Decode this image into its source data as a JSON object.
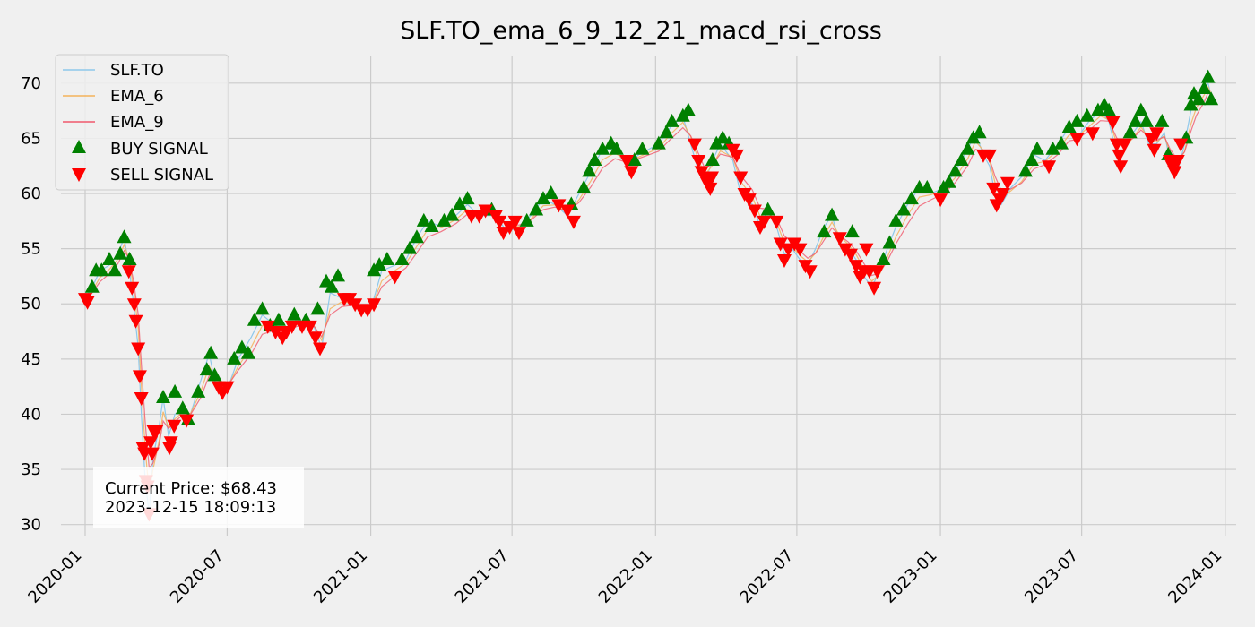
{
  "chart_data": {
    "type": "line",
    "title": "SLF.TO_ema_6_9_12_21_macd_rsi_cross",
    "xlabel": "",
    "ylabel": "",
    "x_range": [
      "2019-12-01",
      "2024-01-15"
    ],
    "ylim": [
      29,
      72.5
    ],
    "x_ticks": [
      "2020-01",
      "2020-07",
      "2021-01",
      "2021-07",
      "2022-01",
      "2022-07",
      "2023-01",
      "2023-07",
      "2024-01"
    ],
    "y_ticks": [
      30,
      35,
      40,
      45,
      50,
      55,
      60,
      65,
      70
    ],
    "grid": true,
    "legend_position": "upper-left",
    "series": [
      {
        "name": "SLF.TO",
        "style": "line",
        "color": "#8ec8ea"
      },
      {
        "name": "EMA_6",
        "style": "line",
        "color": "#f4b25a"
      },
      {
        "name": "EMA_9",
        "style": "line",
        "color": "#f0596c"
      },
      {
        "name": "BUY SIGNAL",
        "style": "marker-up",
        "color": "#008000"
      },
      {
        "name": "SELL SIGNAL",
        "style": "marker-down",
        "color": "#ff0000"
      }
    ],
    "price_keypoints": [
      [
        "2020-01-01",
        50.5
      ],
      [
        "2020-01-10",
        51.5
      ],
      [
        "2020-01-20",
        53
      ],
      [
        "2020-02-01",
        53.5
      ],
      [
        "2020-02-12",
        54.5
      ],
      [
        "2020-02-20",
        56
      ],
      [
        "2020-02-26",
        53.5
      ],
      [
        "2020-03-03",
        50
      ],
      [
        "2020-03-09",
        46
      ],
      [
        "2020-03-13",
        40
      ],
      [
        "2020-03-18",
        34
      ],
      [
        "2020-03-23",
        31
      ],
      [
        "2020-03-28",
        36
      ],
      [
        "2020-04-05",
        39
      ],
      [
        "2020-04-10",
        41.5
      ],
      [
        "2020-04-17",
        38
      ],
      [
        "2020-04-25",
        40
      ],
      [
        "2020-05-05",
        40.5
      ],
      [
        "2020-05-15",
        40
      ],
      [
        "2020-05-28",
        43
      ],
      [
        "2020-06-08",
        45.5
      ],
      [
        "2020-06-15",
        43
      ],
      [
        "2020-06-25",
        42.5
      ],
      [
        "2020-07-05",
        43
      ],
      [
        "2020-07-15",
        45
      ],
      [
        "2020-08-01",
        47
      ],
      [
        "2020-08-15",
        49
      ],
      [
        "2020-09-01",
        48
      ],
      [
        "2020-09-15",
        47.5
      ],
      [
        "2020-10-01",
        48.5
      ],
      [
        "2020-10-20",
        48
      ],
      [
        "2020-10-30",
        46
      ],
      [
        "2020-11-10",
        51
      ],
      [
        "2020-11-25",
        50.5
      ],
      [
        "2020-12-10",
        50
      ],
      [
        "2020-12-25",
        49.5
      ],
      [
        "2021-01-05",
        50.5
      ],
      [
        "2021-01-15",
        53
      ],
      [
        "2021-02-01",
        53.5
      ],
      [
        "2021-02-15",
        54
      ],
      [
        "2021-03-01",
        56
      ],
      [
        "2021-03-15",
        57.5
      ],
      [
        "2021-04-01",
        57
      ],
      [
        "2021-04-20",
        58
      ],
      [
        "2021-05-05",
        59
      ],
      [
        "2021-05-20",
        58
      ],
      [
        "2021-06-10",
        58
      ],
      [
        "2021-06-25",
        56.5
      ],
      [
        "2021-07-10",
        57
      ],
      [
        "2021-07-25",
        58
      ],
      [
        "2021-08-10",
        59.5
      ],
      [
        "2021-08-25",
        59
      ],
      [
        "2021-09-10",
        58
      ],
      [
        "2021-09-25",
        60
      ],
      [
        "2021-10-10",
        62
      ],
      [
        "2021-10-25",
        64
      ],
      [
        "2021-11-10",
        64
      ],
      [
        "2021-11-25",
        62.5
      ],
      [
        "2021-12-10",
        63.5
      ],
      [
        "2022-01-05",
        64.5
      ],
      [
        "2022-01-20",
        66
      ],
      [
        "2022-02-05",
        67
      ],
      [
        "2022-02-15",
        64.5
      ],
      [
        "2022-02-25",
        62
      ],
      [
        "2022-03-05",
        61
      ],
      [
        "2022-03-15",
        63
      ],
      [
        "2022-03-25",
        64.5
      ],
      [
        "2022-04-10",
        63
      ],
      [
        "2022-04-20",
        60
      ],
      [
        "2022-05-05",
        59
      ],
      [
        "2022-05-15",
        57
      ],
      [
        "2022-05-25",
        58.5
      ],
      [
        "2022-06-05",
        57
      ],
      [
        "2022-06-15",
        54.5
      ],
      [
        "2022-06-25",
        55
      ],
      [
        "2022-07-05",
        54
      ],
      [
        "2022-07-15",
        53.5
      ],
      [
        "2022-07-25",
        55
      ],
      [
        "2022-08-05",
        57
      ],
      [
        "2022-08-15",
        58
      ],
      [
        "2022-08-25",
        55.5
      ],
      [
        "2022-09-05",
        55
      ],
      [
        "2022-09-15",
        54
      ],
      [
        "2022-09-25",
        52.5
      ],
      [
        "2022-10-05",
        51.5
      ],
      [
        "2022-10-15",
        53
      ],
      [
        "2022-10-25",
        55
      ],
      [
        "2022-11-05",
        57
      ],
      [
        "2022-11-20",
        59
      ],
      [
        "2022-12-05",
        60.5
      ],
      [
        "2022-12-20",
        60
      ],
      [
        "2023-01-05",
        60.5
      ],
      [
        "2023-01-20",
        62
      ],
      [
        "2023-02-05",
        64
      ],
      [
        "2023-02-15",
        65.5
      ],
      [
        "2023-02-25",
        63.5
      ],
      [
        "2023-03-05",
        62.5
      ],
      [
        "2023-03-12",
        60
      ],
      [
        "2023-03-20",
        59
      ],
      [
        "2023-04-01",
        60.5
      ],
      [
        "2023-04-15",
        61.5
      ],
      [
        "2023-05-01",
        63.5
      ],
      [
        "2023-05-15",
        63
      ],
      [
        "2023-06-01",
        64.5
      ],
      [
        "2023-06-15",
        66
      ],
      [
        "2023-06-25",
        65
      ],
      [
        "2023-07-10",
        66.5
      ],
      [
        "2023-07-25",
        67.5
      ],
      [
        "2023-08-05",
        66.5
      ],
      [
        "2023-08-15",
        63.5
      ],
      [
        "2023-08-25",
        64
      ],
      [
        "2023-09-05",
        65.5
      ],
      [
        "2023-09-15",
        66.5
      ],
      [
        "2023-09-25",
        64.5
      ],
      [
        "2023-10-05",
        64.5
      ],
      [
        "2023-10-15",
        65.5
      ],
      [
        "2023-10-22",
        63
      ],
      [
        "2023-11-01",
        62
      ],
      [
        "2023-11-10",
        64.5
      ],
      [
        "2023-11-18",
        67.5
      ],
      [
        "2023-11-25",
        68.5
      ],
      [
        "2023-12-05",
        69.5
      ],
      [
        "2023-12-10",
        70
      ],
      [
        "2023-12-15",
        68.5
      ]
    ],
    "buy_signals": [
      [
        "2020-01-10",
        51.5
      ],
      [
        "2020-01-15",
        53
      ],
      [
        "2020-01-22",
        53
      ],
      [
        "2020-02-01",
        54
      ],
      [
        "2020-02-08",
        53
      ],
      [
        "2020-02-15",
        54.5
      ],
      [
        "2020-02-20",
        56
      ],
      [
        "2020-02-27",
        54
      ],
      [
        "2020-04-10",
        41.5
      ],
      [
        "2020-04-25",
        42
      ],
      [
        "2020-05-05",
        40.5
      ],
      [
        "2020-05-12",
        39.5
      ],
      [
        "2020-05-25",
        42
      ],
      [
        "2020-06-05",
        44
      ],
      [
        "2020-06-10",
        45.5
      ],
      [
        "2020-06-15",
        43.5
      ],
      [
        "2020-07-10",
        45
      ],
      [
        "2020-07-20",
        46
      ],
      [
        "2020-07-28",
        45.5
      ],
      [
        "2020-08-05",
        48.5
      ],
      [
        "2020-08-15",
        49.5
      ],
      [
        "2020-08-25",
        48
      ],
      [
        "2020-09-05",
        48.5
      ],
      [
        "2020-09-25",
        49
      ],
      [
        "2020-10-10",
        48.5
      ],
      [
        "2020-10-25",
        49.5
      ],
      [
        "2020-11-05",
        52
      ],
      [
        "2020-11-12",
        51.5
      ],
      [
        "2020-11-20",
        52.5
      ],
      [
        "2021-01-05",
        53
      ],
      [
        "2021-01-12",
        53.5
      ],
      [
        "2021-01-22",
        54
      ],
      [
        "2021-02-10",
        54
      ],
      [
        "2021-02-20",
        55
      ],
      [
        "2021-03-01",
        56
      ],
      [
        "2021-03-10",
        57.5
      ],
      [
        "2021-03-20",
        57
      ],
      [
        "2021-04-05",
        57.5
      ],
      [
        "2021-04-15",
        58
      ],
      [
        "2021-04-25",
        59
      ],
      [
        "2021-05-05",
        59.5
      ],
      [
        "2021-06-05",
        58.5
      ],
      [
        "2021-07-20",
        57.5
      ],
      [
        "2021-08-01",
        58.5
      ],
      [
        "2021-08-10",
        59.5
      ],
      [
        "2021-08-20",
        60
      ],
      [
        "2021-09-15",
        59
      ],
      [
        "2021-10-01",
        60.5
      ],
      [
        "2021-10-08",
        62
      ],
      [
        "2021-10-15",
        63
      ],
      [
        "2021-10-25",
        64
      ],
      [
        "2021-11-05",
        64.5
      ],
      [
        "2021-11-12",
        64
      ],
      [
        "2021-12-05",
        63
      ],
      [
        "2021-12-15",
        64
      ],
      [
        "2022-01-05",
        64.5
      ],
      [
        "2022-01-15",
        65.5
      ],
      [
        "2022-01-22",
        66.5
      ],
      [
        "2022-02-05",
        67
      ],
      [
        "2022-02-12",
        67.5
      ],
      [
        "2022-03-15",
        63
      ],
      [
        "2022-03-20",
        64.5
      ],
      [
        "2022-03-28",
        65
      ],
      [
        "2022-04-05",
        64.5
      ],
      [
        "2022-05-25",
        58.5
      ],
      [
        "2022-08-05",
        56.5
      ],
      [
        "2022-08-15",
        58
      ],
      [
        "2022-09-10",
        56.5
      ],
      [
        "2022-10-20",
        54
      ],
      [
        "2022-10-28",
        55.5
      ],
      [
        "2022-11-05",
        57.5
      ],
      [
        "2022-11-15",
        58.5
      ],
      [
        "2022-11-25",
        59.5
      ],
      [
        "2022-12-05",
        60.5
      ],
      [
        "2022-12-15",
        60.5
      ],
      [
        "2023-01-05",
        60.5
      ],
      [
        "2023-01-12",
        61
      ],
      [
        "2023-01-20",
        62
      ],
      [
        "2023-01-28",
        63
      ],
      [
        "2023-02-05",
        64
      ],
      [
        "2023-02-12",
        65
      ],
      [
        "2023-02-20",
        65.5
      ],
      [
        "2023-04-20",
        62
      ],
      [
        "2023-04-28",
        63
      ],
      [
        "2023-05-05",
        64
      ],
      [
        "2023-05-25",
        64
      ],
      [
        "2023-06-05",
        64.5
      ],
      [
        "2023-06-15",
        66
      ],
      [
        "2023-06-25",
        66.5
      ],
      [
        "2023-07-08",
        67
      ],
      [
        "2023-07-22",
        67.5
      ],
      [
        "2023-07-30",
        68
      ],
      [
        "2023-08-05",
        67.5
      ],
      [
        "2023-09-01",
        65.5
      ],
      [
        "2023-09-08",
        66.5
      ],
      [
        "2023-09-15",
        67.5
      ],
      [
        "2023-09-22",
        66.5
      ],
      [
        "2023-10-12",
        66.5
      ],
      [
        "2023-10-20",
        63.5
      ],
      [
        "2023-11-12",
        65
      ],
      [
        "2023-11-18",
        68
      ],
      [
        "2023-11-22",
        69
      ],
      [
        "2023-11-28",
        68.5
      ],
      [
        "2023-12-05",
        69.5
      ],
      [
        "2023-12-10",
        70.5
      ],
      [
        "2023-12-14",
        68.5
      ]
    ],
    "sell_signals": [
      [
        "2020-01-01",
        50.5
      ],
      [
        "2020-01-04",
        50.2
      ],
      [
        "2020-02-26",
        53
      ],
      [
        "2020-03-01",
        51.5
      ],
      [
        "2020-03-04",
        50
      ],
      [
        "2020-03-06",
        48.5
      ],
      [
        "2020-03-09",
        46
      ],
      [
        "2020-03-11",
        43.5
      ],
      [
        "2020-03-13",
        41.5
      ],
      [
        "2020-03-15",
        37
      ],
      [
        "2020-03-17",
        36.5
      ],
      [
        "2020-03-19",
        34
      ],
      [
        "2020-03-21",
        33.5
      ],
      [
        "2020-03-23",
        31
      ],
      [
        "2020-03-25",
        37.5
      ],
      [
        "2020-03-27",
        36.5
      ],
      [
        "2020-03-29",
        38.5
      ],
      [
        "2020-04-01",
        38.5
      ],
      [
        "2020-04-18",
        37
      ],
      [
        "2020-04-20",
        37.5
      ],
      [
        "2020-04-24",
        39
      ],
      [
        "2020-05-10",
        39.5
      ],
      [
        "2020-06-20",
        42.5
      ],
      [
        "2020-06-25",
        42
      ],
      [
        "2020-07-01",
        42.5
      ],
      [
        "2020-08-22",
        48
      ],
      [
        "2020-09-01",
        47.5
      ],
      [
        "2020-09-10",
        47
      ],
      [
        "2020-09-15",
        47.5
      ],
      [
        "2020-09-22",
        48
      ],
      [
        "2020-10-05",
        48
      ],
      [
        "2020-10-15",
        48
      ],
      [
        "2020-10-22",
        47
      ],
      [
        "2020-10-28",
        46
      ],
      [
        "2020-11-28",
        50.5
      ],
      [
        "2020-12-05",
        50.5
      ],
      [
        "2020-12-12",
        50
      ],
      [
        "2020-12-20",
        49.5
      ],
      [
        "2020-12-28",
        49.5
      ],
      [
        "2021-01-05",
        50
      ],
      [
        "2021-02-01",
        52.5
      ],
      [
        "2021-05-10",
        58
      ],
      [
        "2021-05-20",
        58
      ],
      [
        "2021-05-28",
        58.5
      ],
      [
        "2021-06-10",
        58
      ],
      [
        "2021-06-15",
        57.5
      ],
      [
        "2021-06-20",
        56.5
      ],
      [
        "2021-06-28",
        57
      ],
      [
        "2021-07-05",
        57.5
      ],
      [
        "2021-07-10",
        56.5
      ],
      [
        "2021-08-30",
        59
      ],
      [
        "2021-09-10",
        58.5
      ],
      [
        "2021-09-18",
        57.5
      ],
      [
        "2021-11-25",
        63
      ],
      [
        "2021-12-01",
        62
      ],
      [
        "2022-02-20",
        64.5
      ],
      [
        "2022-02-25",
        63
      ],
      [
        "2022-03-01",
        62
      ],
      [
        "2022-03-05",
        61.5
      ],
      [
        "2022-03-08",
        61
      ],
      [
        "2022-03-12",
        60.5
      ],
      [
        "2022-03-14",
        61.5
      ],
      [
        "2022-04-10",
        64
      ],
      [
        "2022-04-15",
        63.5
      ],
      [
        "2022-04-20",
        61.5
      ],
      [
        "2022-04-25",
        60
      ],
      [
        "2022-05-01",
        59.5
      ],
      [
        "2022-05-08",
        58.5
      ],
      [
        "2022-05-15",
        57
      ],
      [
        "2022-05-20",
        57.5
      ],
      [
        "2022-06-05",
        57.5
      ],
      [
        "2022-06-10",
        55.5
      ],
      [
        "2022-06-15",
        54
      ],
      [
        "2022-06-20",
        55
      ],
      [
        "2022-06-28",
        55.5
      ],
      [
        "2022-07-05",
        55
      ],
      [
        "2022-07-12",
        53.5
      ],
      [
        "2022-07-18",
        53
      ],
      [
        "2022-08-25",
        56
      ],
      [
        "2022-09-01",
        55
      ],
      [
        "2022-09-08",
        54.5
      ],
      [
        "2022-09-15",
        53.5
      ],
      [
        "2022-09-20",
        52.5
      ],
      [
        "2022-09-25",
        53
      ],
      [
        "2022-09-28",
        55
      ],
      [
        "2022-10-02",
        53
      ],
      [
        "2022-10-08",
        51.5
      ],
      [
        "2022-10-12",
        53
      ],
      [
        "2023-01-01",
        59.5
      ],
      [
        "2023-02-25",
        63.5
      ],
      [
        "2023-03-05",
        63.5
      ],
      [
        "2023-03-10",
        60.5
      ],
      [
        "2023-03-14",
        59
      ],
      [
        "2023-03-18",
        59.5
      ],
      [
        "2023-03-22",
        60
      ],
      [
        "2023-03-28",
        61
      ],
      [
        "2023-05-20",
        62.5
      ],
      [
        "2023-06-25",
        65
      ],
      [
        "2023-07-15",
        65.5
      ],
      [
        "2023-08-10",
        66.5
      ],
      [
        "2023-08-15",
        64.5
      ],
      [
        "2023-08-18",
        63.5
      ],
      [
        "2023-08-20",
        62.5
      ],
      [
        "2023-08-25",
        64.5
      ],
      [
        "2023-09-28",
        65
      ],
      [
        "2023-10-02",
        64
      ],
      [
        "2023-10-05",
        65.5
      ],
      [
        "2023-10-22",
        63
      ],
      [
        "2023-10-25",
        62.5
      ],
      [
        "2023-10-28",
        62
      ],
      [
        "2023-11-01",
        63
      ],
      [
        "2023-11-05",
        64.5
      ]
    ],
    "annotation": {
      "line1": "Current Price: $68.43",
      "line2": "2023-12-15 18:09:13"
    }
  }
}
